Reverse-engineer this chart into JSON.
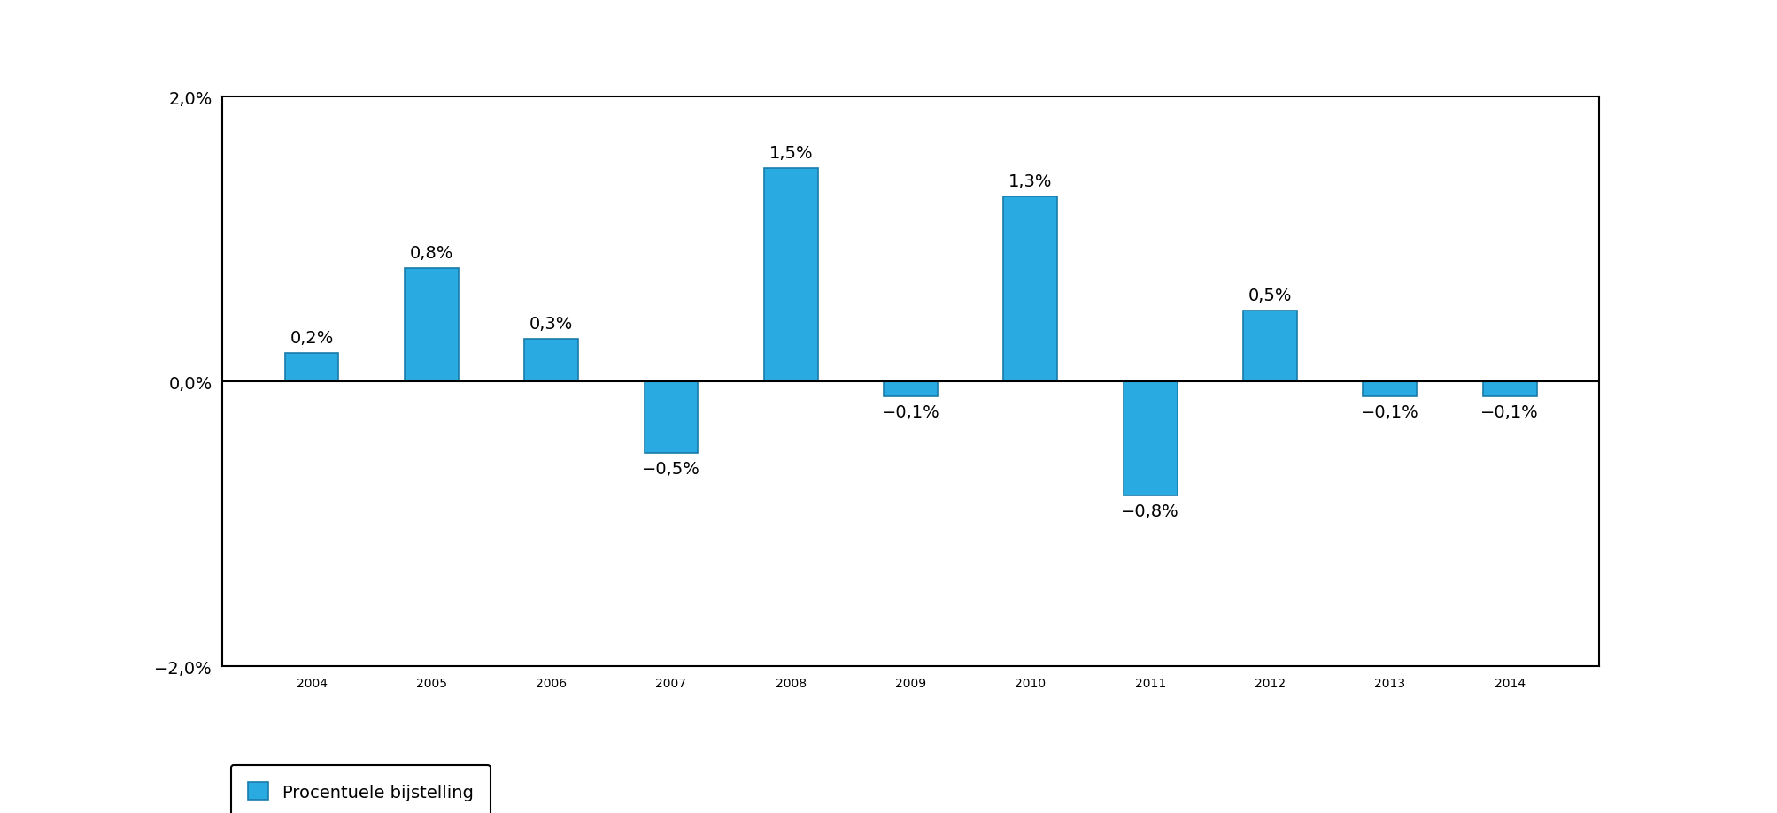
{
  "categories": [
    "2004",
    "2005",
    "2006",
    "2007",
    "2008",
    "2009",
    "2010",
    "2011",
    "2012",
    "2013",
    "2014"
  ],
  "values": [
    0.2,
    0.8,
    0.3,
    -0.5,
    1.5,
    -0.1,
    1.3,
    -0.8,
    0.5,
    -0.1,
    -0.1
  ],
  "labels": [
    "0,2%",
    "0,8%",
    "0,3%",
    "−0,5%",
    "1,5%",
    "−0,1%",
    "1,3%",
    "−0,8%",
    "0,5%",
    "−0,1%",
    "−0,1%"
  ],
  "bar_color": "#29ABE2",
  "bar_edge_color": "#1a7aaa",
  "ylim": [
    -2.0,
    2.0
  ],
  "yticks": [
    -2.0,
    0.0,
    2.0
  ],
  "ytick_labels": [
    "−2,0%",
    "0,0%",
    "2,0%"
  ],
  "legend_label": "Procentuele bijstelling",
  "background_color": "#ffffff",
  "label_fontsize": 14,
  "tick_fontsize": 14,
  "legend_fontsize": 14,
  "bar_width": 0.45
}
